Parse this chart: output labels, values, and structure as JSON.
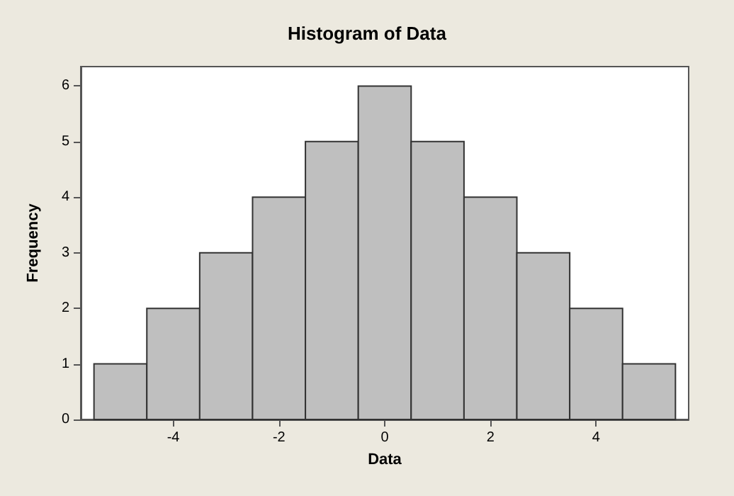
{
  "chart_data": {
    "type": "histogram",
    "title": "Histogram of Data",
    "xlabel": "Data",
    "ylabel": "Frequency",
    "bins": [
      -5.5,
      -4.5,
      -3.5,
      -2.5,
      -1.5,
      -0.5,
      0.5,
      1.5,
      2.5,
      3.5,
      4.5,
      5.5
    ],
    "values": [
      1,
      2,
      3,
      4,
      5,
      6,
      5,
      4,
      3,
      2,
      1
    ],
    "color": "#bfbfbf",
    "xlim": [
      -5.75,
      5.75
    ],
    "xticks": [
      -4,
      -2,
      0,
      2,
      4
    ],
    "ylim": [
      0,
      6.35
    ],
    "yticks": [
      0,
      1,
      2,
      3,
      4,
      5,
      6
    ],
    "grid": false
  }
}
